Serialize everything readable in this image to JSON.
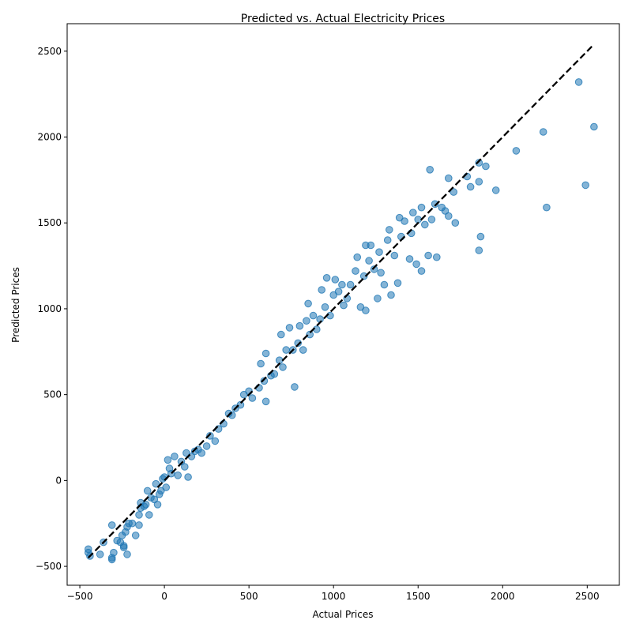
{
  "chart_data": {
    "type": "scatter",
    "title": "Predicted vs. Actual Electricity Prices",
    "xlabel": "Actual Prices",
    "ylabel": "Predicted Prices",
    "xlim": [
      -575,
      2690
    ],
    "ylim": [
      -610,
      2660
    ],
    "xticks": [
      -500,
      0,
      500,
      1000,
      1500,
      2000,
      2500
    ],
    "yticks": [
      -500,
      0,
      500,
      1000,
      1500,
      2000,
      2500
    ],
    "xtick_labels": [
      "−500",
      "0",
      "500",
      "1000",
      "1500",
      "2000",
      "2500"
    ],
    "ytick_labels": [
      "−500",
      "0",
      "500",
      "1000",
      "1500",
      "2000",
      "2500"
    ],
    "grid": false,
    "point_color": "#1f77b4",
    "point_opacity": 0.55,
    "reference_line": {
      "x": [
        -450,
        2540
      ],
      "y": [
        -450,
        2540
      ],
      "style": "dashed",
      "color": "#000000"
    },
    "series": [
      {
        "points": [
          [
            -450,
            -400
          ],
          [
            -450,
            -420
          ],
          [
            -440,
            -440
          ],
          [
            -380,
            -430
          ],
          [
            -360,
            -360
          ],
          [
            -310,
            -460
          ],
          [
            -310,
            -450
          ],
          [
            -300,
            -420
          ],
          [
            -310,
            -260
          ],
          [
            -280,
            -350
          ],
          [
            -260,
            -360
          ],
          [
            -250,
            -320
          ],
          [
            -240,
            -390
          ],
          [
            -240,
            -380
          ],
          [
            -220,
            -430
          ],
          [
            -230,
            -300
          ],
          [
            -220,
            -270
          ],
          [
            -210,
            -250
          ],
          [
            -190,
            -250
          ],
          [
            -170,
            -320
          ],
          [
            -150,
            -260
          ],
          [
            -150,
            -200
          ],
          [
            -140,
            -160
          ],
          [
            -140,
            -130
          ],
          [
            -120,
            -150
          ],
          [
            -110,
            -140
          ],
          [
            -100,
            -60
          ],
          [
            -90,
            -200
          ],
          [
            -80,
            -100
          ],
          [
            -60,
            -110
          ],
          [
            -50,
            -20
          ],
          [
            -40,
            -140
          ],
          [
            -30,
            -80
          ],
          [
            -20,
            -60
          ],
          [
            -10,
            10
          ],
          [
            0,
            20
          ],
          [
            10,
            -40
          ],
          [
            20,
            120
          ],
          [
            30,
            70
          ],
          [
            40,
            40
          ],
          [
            60,
            140
          ],
          [
            80,
            30
          ],
          [
            100,
            110
          ],
          [
            120,
            80
          ],
          [
            130,
            160
          ],
          [
            140,
            20
          ],
          [
            160,
            140
          ],
          [
            180,
            170
          ],
          [
            200,
            180
          ],
          [
            220,
            160
          ],
          [
            250,
            200
          ],
          [
            270,
            260
          ],
          [
            300,
            230
          ],
          [
            320,
            300
          ],
          [
            350,
            330
          ],
          [
            380,
            390
          ],
          [
            400,
            380
          ],
          [
            420,
            420
          ],
          [
            450,
            440
          ],
          [
            470,
            500
          ],
          [
            500,
            520
          ],
          [
            520,
            480
          ],
          [
            560,
            540
          ],
          [
            570,
            680
          ],
          [
            590,
            580
          ],
          [
            600,
            460
          ],
          [
            600,
            740
          ],
          [
            630,
            610
          ],
          [
            650,
            620
          ],
          [
            680,
            700
          ],
          [
            690,
            850
          ],
          [
            700,
            660
          ],
          [
            720,
            760
          ],
          [
            740,
            890
          ],
          [
            760,
            760
          ],
          [
            770,
            545
          ],
          [
            790,
            800
          ],
          [
            800,
            900
          ],
          [
            820,
            760
          ],
          [
            840,
            930
          ],
          [
            850,
            1030
          ],
          [
            860,
            850
          ],
          [
            880,
            960
          ],
          [
            900,
            880
          ],
          [
            920,
            940
          ],
          [
            930,
            1110
          ],
          [
            950,
            1010
          ],
          [
            960,
            1180
          ],
          [
            980,
            960
          ],
          [
            1000,
            1080
          ],
          [
            1010,
            1170
          ],
          [
            1030,
            1100
          ],
          [
            1050,
            1140
          ],
          [
            1060,
            1020
          ],
          [
            1080,
            1060
          ],
          [
            1100,
            1140
          ],
          [
            1130,
            1220
          ],
          [
            1140,
            1300
          ],
          [
            1160,
            1010
          ],
          [
            1180,
            1190
          ],
          [
            1190,
            990
          ],
          [
            1190,
            1370
          ],
          [
            1210,
            1280
          ],
          [
            1220,
            1370
          ],
          [
            1240,
            1230
          ],
          [
            1260,
            1060
          ],
          [
            1270,
            1330
          ],
          [
            1280,
            1210
          ],
          [
            1300,
            1140
          ],
          [
            1320,
            1400
          ],
          [
            1330,
            1460
          ],
          [
            1340,
            1080
          ],
          [
            1360,
            1310
          ],
          [
            1380,
            1150
          ],
          [
            1390,
            1530
          ],
          [
            1400,
            1420
          ],
          [
            1420,
            1510
          ],
          [
            1450,
            1290
          ],
          [
            1460,
            1440
          ],
          [
            1470,
            1560
          ],
          [
            1490,
            1260
          ],
          [
            1500,
            1520
          ],
          [
            1520,
            1220
          ],
          [
            1520,
            1590
          ],
          [
            1540,
            1490
          ],
          [
            1560,
            1310
          ],
          [
            1570,
            1810
          ],
          [
            1580,
            1520
          ],
          [
            1600,
            1610
          ],
          [
            1610,
            1300
          ],
          [
            1640,
            1590
          ],
          [
            1660,
            1570
          ],
          [
            1680,
            1540
          ],
          [
            1680,
            1760
          ],
          [
            1710,
            1680
          ],
          [
            1720,
            1500
          ],
          [
            1790,
            1770
          ],
          [
            1810,
            1710
          ],
          [
            1860,
            1340
          ],
          [
            1860,
            1850
          ],
          [
            1860,
            1740
          ],
          [
            1870,
            1420
          ],
          [
            1900,
            1830
          ],
          [
            1960,
            1690
          ],
          [
            2080,
            1920
          ],
          [
            2240,
            2030
          ],
          [
            2260,
            1590
          ],
          [
            2450,
            2320
          ],
          [
            2490,
            1720
          ],
          [
            2540,
            2060
          ]
        ]
      }
    ]
  }
}
